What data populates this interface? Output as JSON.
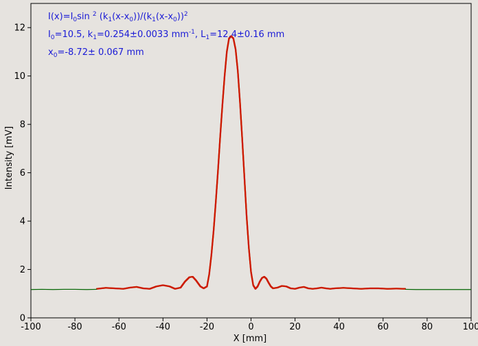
{
  "chart_data": {
    "type": "scatter",
    "title": "",
    "xlabel": "X [mm]",
    "ylabel": "Intensity [mV]",
    "xlim": [
      -100,
      100
    ],
    "ylim": [
      0,
      13
    ],
    "x_ticks": [
      -100,
      -80,
      -60,
      -40,
      -20,
      0,
      20,
      40,
      60,
      80,
      100
    ],
    "y_ticks": [
      0,
      2,
      4,
      6,
      8,
      10,
      12
    ],
    "grid": false,
    "annotations": {
      "line1": {
        "a": "I(x)=I",
        "a_sub": "0",
        "b": "sin ",
        "b_sup": "2",
        "c": " (k",
        "c_sub": "1",
        "d": "(x-x",
        "d_sub": "0",
        "e": "))/(k",
        "e_sub": "1",
        "f": "(x-x",
        "f_sub": "0",
        "g": "))",
        "g_sup": "2"
      },
      "line2": {
        "a": "I",
        "a_sub": "0",
        "b": "=10.5,  k",
        "b_sub": "1",
        "c": "=0.254±0.0033 mm",
        "c_sup": "-1",
        "d": ",   L",
        "d_sub": "1",
        "e": "=12.4±0.16 mm"
      },
      "line3": {
        "a": "x",
        "a_sub": "0",
        "b": "=-8.72±   0.067 mm"
      }
    },
    "series": [
      {
        "style": "points",
        "color": "#cc1a00",
        "x": [
          -70,
          -66,
          -62,
          -58,
          -55,
          -52,
          -49,
          -46,
          -43,
          -40,
          -37,
          -34.5,
          -32,
          -30,
          -28,
          -26.5,
          -25,
          -23,
          -21.5,
          -20,
          -19,
          -18,
          -17,
          -16,
          -15,
          -14,
          -13,
          -12,
          -11,
          -10,
          -9,
          -8,
          -7,
          -6,
          -5,
          -4,
          -3,
          -2,
          -1,
          0,
          1,
          2,
          3,
          4,
          5,
          6,
          7,
          8,
          9,
          10,
          12,
          14,
          16,
          18,
          20,
          22,
          24,
          26,
          28,
          30,
          32,
          34,
          36,
          38,
          42,
          46,
          50,
          54,
          58,
          62,
          66,
          70
        ],
        "y": [
          1.2,
          1.24,
          1.22,
          1.2,
          1.25,
          1.28,
          1.22,
          1.2,
          1.3,
          1.35,
          1.3,
          1.2,
          1.25,
          1.5,
          1.68,
          1.7,
          1.55,
          1.3,
          1.22,
          1.3,
          1.8,
          2.6,
          3.6,
          4.8,
          6.1,
          7.5,
          8.8,
          10.0,
          11.0,
          11.55,
          11.65,
          11.55,
          11.1,
          10.2,
          8.9,
          7.4,
          5.8,
          4.2,
          2.9,
          1.9,
          1.35,
          1.2,
          1.3,
          1.5,
          1.65,
          1.7,
          1.62,
          1.45,
          1.3,
          1.22,
          1.25,
          1.32,
          1.3,
          1.22,
          1.2,
          1.25,
          1.28,
          1.22,
          1.2,
          1.22,
          1.25,
          1.22,
          1.2,
          1.22,
          1.24,
          1.22,
          1.2,
          1.22,
          1.22,
          1.2,
          1.21,
          1.2
        ]
      },
      {
        "style": "line",
        "color": "#006400",
        "x": [
          -100,
          -95,
          -90,
          -85,
          -80,
          -75,
          -70,
          70,
          75,
          80,
          85,
          90,
          95,
          100
        ],
        "y": [
          1.17,
          1.18,
          1.17,
          1.18,
          1.18,
          1.17,
          1.18,
          1.18,
          1.17,
          1.17,
          1.17,
          1.17,
          1.17,
          1.17
        ]
      }
    ]
  }
}
